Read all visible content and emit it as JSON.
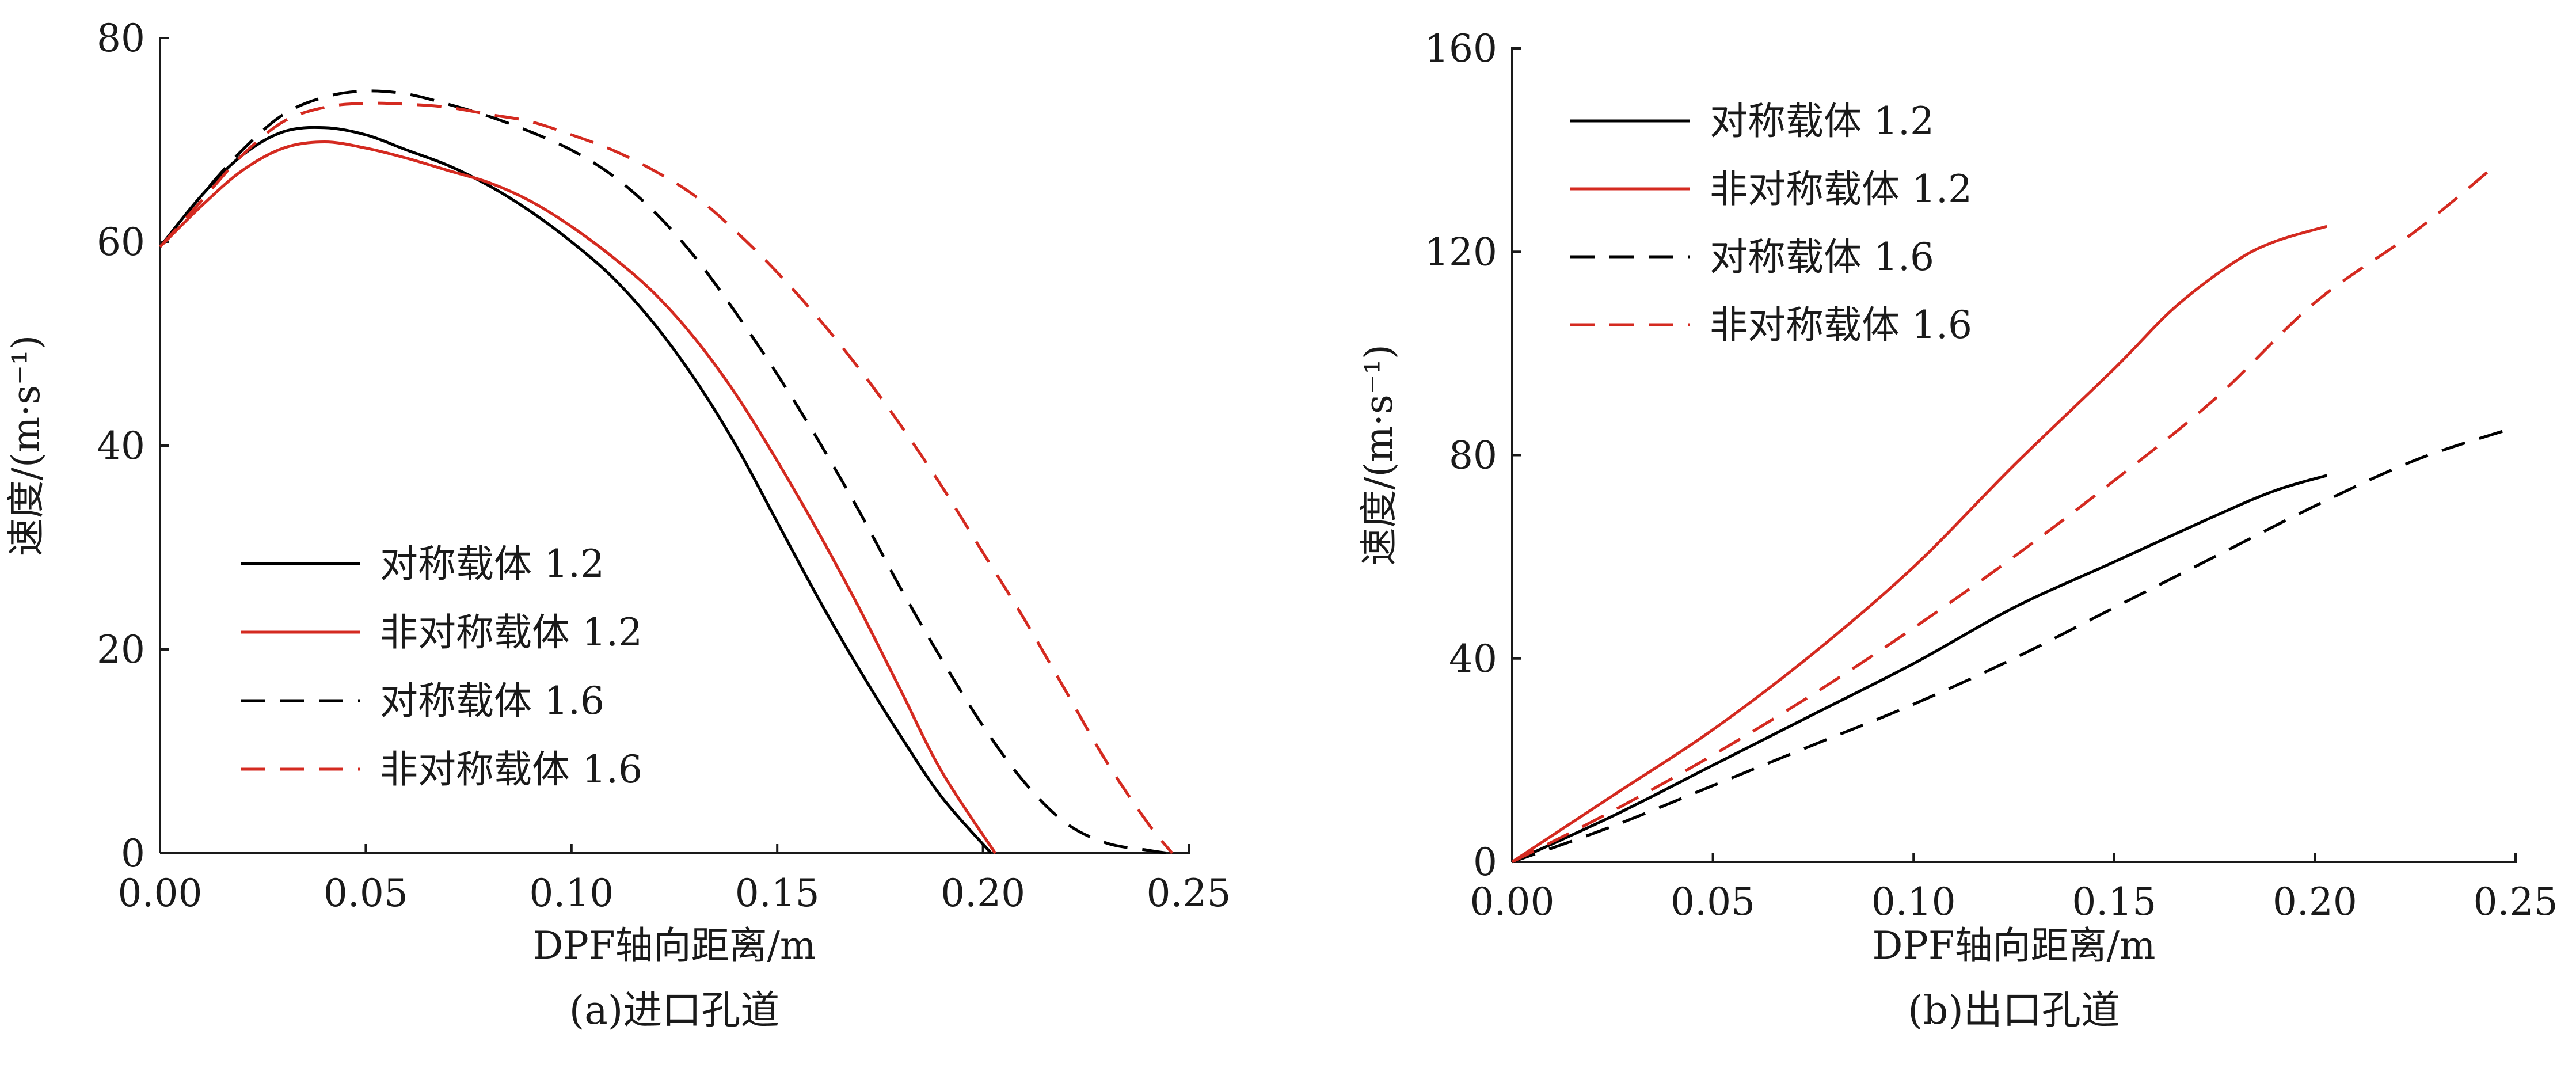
{
  "chart_data": [
    {
      "type": "line",
      "caption": "(a)进口孔道",
      "xlabel": "DPF轴向距离/m",
      "ylabel": "速度/(m·s⁻¹)",
      "xlim": [
        0,
        0.25
      ],
      "ylim": [
        0,
        80
      ],
      "xticks": [
        "0.00",
        "0.05",
        "0.10",
        "0.15",
        "0.20",
        "0.25"
      ],
      "yticks": [
        "0",
        "20",
        "40",
        "60",
        "80"
      ],
      "legend_position": "lower-left",
      "series": [
        {
          "name": "对称载体 1.2",
          "color": "#000000",
          "dash": "solid",
          "points": [
            [
              0,
              59.5
            ],
            [
              0.01,
              64.5
            ],
            [
              0.02,
              68.5
            ],
            [
              0.03,
              70.8
            ],
            [
              0.04,
              71.2
            ],
            [
              0.05,
              70.5
            ],
            [
              0.06,
              69
            ],
            [
              0.07,
              67.5
            ],
            [
              0.08,
              65.5
            ],
            [
              0.09,
              63
            ],
            [
              0.1,
              60
            ],
            [
              0.11,
              56.5
            ],
            [
              0.12,
              52
            ],
            [
              0.13,
              46.5
            ],
            [
              0.14,
              40
            ],
            [
              0.15,
              32.5
            ],
            [
              0.16,
              25
            ],
            [
              0.17,
              18
            ],
            [
              0.18,
              11.5
            ],
            [
              0.19,
              5.5
            ],
            [
              0.202,
              0
            ]
          ]
        },
        {
          "name": "非对称载体 1.2",
          "color": "#d42a20",
          "dash": "solid",
          "points": [
            [
              0,
              59.5
            ],
            [
              0.01,
              63.5
            ],
            [
              0.02,
              67
            ],
            [
              0.03,
              69.2
            ],
            [
              0.04,
              69.8
            ],
            [
              0.05,
              69.2
            ],
            [
              0.06,
              68.2
            ],
            [
              0.07,
              67
            ],
            [
              0.08,
              65.8
            ],
            [
              0.09,
              64
            ],
            [
              0.1,
              61.5
            ],
            [
              0.11,
              58.5
            ],
            [
              0.12,
              55
            ],
            [
              0.13,
              50.5
            ],
            [
              0.14,
              45
            ],
            [
              0.15,
              38.5
            ],
            [
              0.16,
              31.5
            ],
            [
              0.17,
              24
            ],
            [
              0.18,
              16
            ],
            [
              0.19,
              8
            ],
            [
              0.203,
              0
            ]
          ]
        },
        {
          "name": "对称载体 1.6",
          "color": "#000000",
          "dash": "dashed",
          "points": [
            [
              0,
              59.5
            ],
            [
              0.01,
              64.5
            ],
            [
              0.02,
              69
            ],
            [
              0.03,
              72.5
            ],
            [
              0.04,
              74.2
            ],
            [
              0.05,
              74.8
            ],
            [
              0.06,
              74.5
            ],
            [
              0.07,
              73.5
            ],
            [
              0.08,
              72.3
            ],
            [
              0.09,
              70.8
            ],
            [
              0.1,
              69
            ],
            [
              0.11,
              66.5
            ],
            [
              0.12,
              63
            ],
            [
              0.13,
              58.5
            ],
            [
              0.14,
              53
            ],
            [
              0.15,
              47
            ],
            [
              0.16,
              40.5
            ],
            [
              0.17,
              33.5
            ],
            [
              0.18,
              26
            ],
            [
              0.19,
              19
            ],
            [
              0.2,
              12.5
            ],
            [
              0.21,
              7
            ],
            [
              0.22,
              3
            ],
            [
              0.23,
              1
            ],
            [
              0.24,
              0.3
            ],
            [
              0.245,
              0
            ]
          ]
        },
        {
          "name": "非对称载体 1.6",
          "color": "#d42a20",
          "dash": "dashed",
          "points": [
            [
              0,
              59.5
            ],
            [
              0.01,
              64
            ],
            [
              0.02,
              68.5
            ],
            [
              0.03,
              71.8
            ],
            [
              0.04,
              73.2
            ],
            [
              0.05,
              73.6
            ],
            [
              0.06,
              73.5
            ],
            [
              0.07,
              73.2
            ],
            [
              0.08,
              72.5
            ],
            [
              0.09,
              71.8
            ],
            [
              0.1,
              70.5
            ],
            [
              0.11,
              69
            ],
            [
              0.12,
              67
            ],
            [
              0.13,
              64.5
            ],
            [
              0.14,
              61
            ],
            [
              0.15,
              57
            ],
            [
              0.16,
              52.5
            ],
            [
              0.17,
              47.5
            ],
            [
              0.18,
              42
            ],
            [
              0.19,
              36
            ],
            [
              0.2,
              29.5
            ],
            [
              0.21,
              23
            ],
            [
              0.22,
              16
            ],
            [
              0.23,
              9
            ],
            [
              0.24,
              3
            ],
            [
              0.246,
              0
            ]
          ]
        }
      ]
    },
    {
      "type": "line",
      "caption": "(b)出口孔道",
      "xlabel": "DPF轴向距离/m",
      "ylabel": "速度/(m·s⁻¹)",
      "xlim": [
        0,
        0.25
      ],
      "ylim": [
        0,
        160
      ],
      "xticks": [
        "0.00",
        "0.05",
        "0.10",
        "0.15",
        "0.20",
        "0.25"
      ],
      "yticks": [
        "0",
        "40",
        "80",
        "120",
        "160"
      ],
      "legend_position": "top-left",
      "series": [
        {
          "name": "对称载体 1.2",
          "color": "#000000",
          "dash": "solid",
          "points": [
            [
              0,
              0
            ],
            [
              0.025,
              9
            ],
            [
              0.05,
              19
            ],
            [
              0.075,
              29
            ],
            [
              0.1,
              39
            ],
            [
              0.125,
              50
            ],
            [
              0.15,
              59
            ],
            [
              0.175,
              68
            ],
            [
              0.19,
              73
            ],
            [
              0.203,
              76
            ]
          ]
        },
        {
          "name": "非对称载体 1.2",
          "color": "#d42a20",
          "dash": "solid",
          "points": [
            [
              0,
              0
            ],
            [
              0.025,
              13
            ],
            [
              0.05,
              26
            ],
            [
              0.075,
              41
            ],
            [
              0.1,
              58
            ],
            [
              0.125,
              78
            ],
            [
              0.15,
              97
            ],
            [
              0.165,
              109
            ],
            [
              0.18,
              118
            ],
            [
              0.19,
              122
            ],
            [
              0.203,
              125
            ]
          ]
        },
        {
          "name": "对称载体 1.6",
          "color": "#000000",
          "dash": "dashed",
          "points": [
            [
              0,
              0
            ],
            [
              0.025,
              7
            ],
            [
              0.05,
              15
            ],
            [
              0.075,
              23
            ],
            [
              0.1,
              31
            ],
            [
              0.125,
              40
            ],
            [
              0.15,
              50
            ],
            [
              0.175,
              60
            ],
            [
              0.2,
              70
            ],
            [
              0.225,
              79
            ],
            [
              0.248,
              85
            ]
          ]
        },
        {
          "name": "非对称载体 1.6",
          "color": "#d42a20",
          "dash": "dashed",
          "points": [
            [
              0,
              0
            ],
            [
              0.025,
              10
            ],
            [
              0.05,
              21
            ],
            [
              0.075,
              33
            ],
            [
              0.1,
              46
            ],
            [
              0.125,
              60
            ],
            [
              0.15,
              75
            ],
            [
              0.175,
              91
            ],
            [
              0.2,
              110
            ],
            [
              0.225,
              124
            ],
            [
              0.245,
              137
            ]
          ]
        }
      ]
    }
  ]
}
